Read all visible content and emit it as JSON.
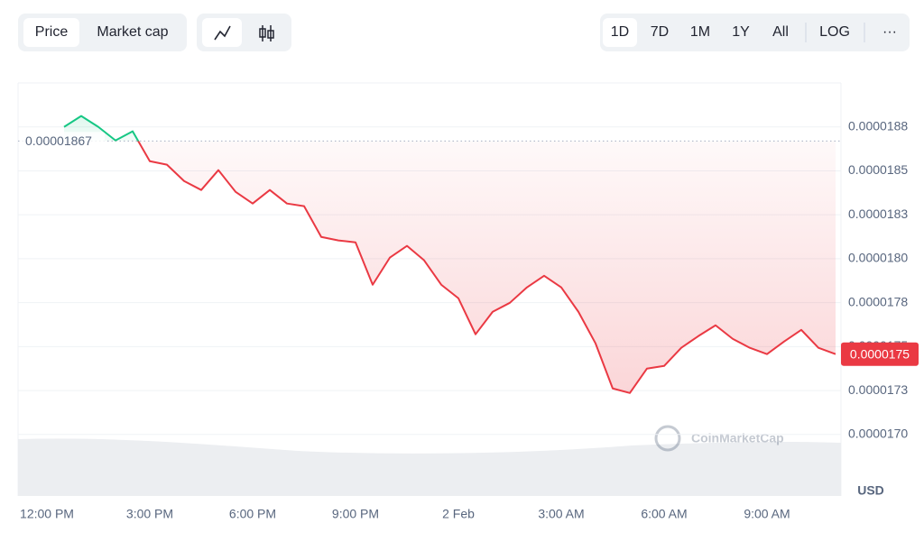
{
  "toolbar": {
    "tabs": [
      "Price",
      "Market cap"
    ],
    "ranges": [
      "1D",
      "7D",
      "1M",
      "1Y",
      "All",
      "LOG"
    ],
    "more": "···"
  },
  "chart_data": {
    "type": "line",
    "categories": [
      null,
      "12:00 PM",
      null,
      null,
      null,
      null,
      null,
      "3:00 PM",
      null,
      null,
      null,
      null,
      null,
      "6:00 PM",
      null,
      null,
      null,
      null,
      null,
      "9:00 PM",
      null,
      null,
      null,
      null,
      null,
      "2 Feb",
      null,
      null,
      null,
      null,
      null,
      "3:00 AM",
      null,
      null,
      null,
      null,
      null,
      "6:00 AM",
      null,
      null,
      null,
      null,
      null,
      "9:00 AM",
      null,
      null,
      null,
      null
    ],
    "values": [
      null,
      null,
      1.875e-05,
      1.8812e-05,
      1.875e-05,
      1.8673e-05,
      1.8725e-05,
      1.8555e-05,
      1.8535e-05,
      1.8442e-05,
      1.8391e-05,
      1.8504e-05,
      1.8381e-05,
      1.8314e-05,
      1.8391e-05,
      1.8314e-05,
      1.8299e-05,
      1.8124e-05,
      1.8104e-05,
      1.8093e-05,
      1.7852e-05,
      1.8006e-05,
      1.8073e-05,
      1.7991e-05,
      1.7852e-05,
      1.7775e-05,
      1.757e-05,
      1.7698e-05,
      1.7749e-05,
      1.7837e-05,
      1.7903e-05,
      1.7837e-05,
      1.7698e-05,
      1.7518e-05,
      1.7262e-05,
      1.7236e-05,
      1.7375e-05,
      1.739e-05,
      1.7493e-05,
      1.756e-05,
      1.7621e-05,
      1.7544e-05,
      1.7493e-05,
      1.7457e-05,
      1.7529e-05,
      1.7595e-05,
      1.7493e-05,
      1.7457e-05
    ],
    "color_up": "#16c784",
    "color_down": "#ea3943",
    "reference_line": 1.867e-05,
    "last_price": {
      "value": 1.7457e-05,
      "label": "0.0000175"
    },
    "ylim": [
      1.665e-05,
      1.9e-05
    ],
    "yticks": [
      {
        "value": 1.7e-05,
        "label": "0.0000170"
      },
      {
        "value": 1.725e-05,
        "label": "0.0000173"
      },
      {
        "value": 1.75e-05,
        "label": "0.0000175"
      },
      {
        "value": 1.775e-05,
        "label": "0.0000178"
      },
      {
        "value": 1.8e-05,
        "label": "0.0000180"
      },
      {
        "value": 1.825e-05,
        "label": "0.0000183"
      },
      {
        "value": 1.85e-05,
        "label": "0.0000185"
      },
      {
        "value": 1.875e-05,
        "label": "0.0000188"
      }
    ],
    "y_label": "USD",
    "watermark": "CoinMarketCap",
    "grid": true
  }
}
